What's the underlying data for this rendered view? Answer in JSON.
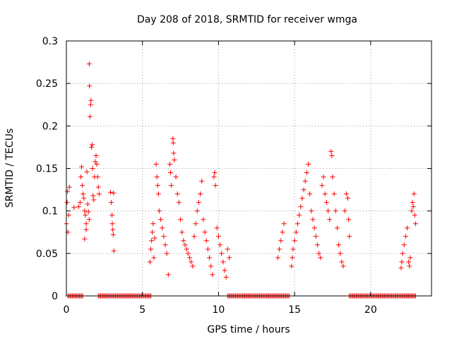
{
  "chart_data": {
    "type": "scatter",
    "title": "Day 208 of 2018, SRMTID for receiver wmga",
    "xlabel": "GPS time / hours",
    "ylabel": "SRMTID / TECUs",
    "xlim": [
      0,
      24
    ],
    "ylim": [
      0,
      0.3
    ],
    "xticks": [
      0,
      5,
      10,
      15,
      20
    ],
    "xtick_labels": [
      "0",
      "5",
      "10",
      "15",
      "20"
    ],
    "yticks": [
      0,
      0.05,
      0.1,
      0.15,
      0.2,
      0.25,
      0.3
    ],
    "ytick_labels": [
      "0",
      "0.05",
      "0.1",
      "0.15",
      "0.2",
      "0.25",
      "0.3"
    ],
    "grid": true,
    "marker": "+",
    "series": [
      {
        "name": "SRMTID",
        "color": "#ff0000",
        "points": [
          [
            0.0,
            0.085
          ],
          [
            0.05,
            0.11
          ],
          [
            0.08,
            0.123
          ],
          [
            0.1,
            0.075
          ],
          [
            0.15,
            0.095
          ],
          [
            0.2,
            0.128
          ],
          [
            0.5,
            0.104
          ],
          [
            0.8,
            0.105
          ],
          [
            0.9,
            0.11
          ],
          [
            0.95,
            0.14
          ],
          [
            1.0,
            0.152
          ],
          [
            1.05,
            0.13
          ],
          [
            1.1,
            0.12
          ],
          [
            1.15,
            0.115
          ],
          [
            1.2,
            0.1
          ],
          [
            1.25,
            0.095
          ],
          [
            1.3,
            0.085
          ],
          [
            1.35,
            0.146
          ],
          [
            1.4,
            0.108
          ],
          [
            1.45,
            0.099
          ],
          [
            1.5,
            0.273
          ],
          [
            1.52,
            0.247
          ],
          [
            1.55,
            0.211
          ],
          [
            1.6,
            0.225
          ],
          [
            1.62,
            0.23
          ],
          [
            1.65,
            0.175
          ],
          [
            1.7,
            0.178
          ],
          [
            1.72,
            0.15
          ],
          [
            1.75,
            0.118
          ],
          [
            1.8,
            0.113
          ],
          [
            1.85,
            0.14
          ],
          [
            1.9,
            0.158
          ],
          [
            1.95,
            0.165
          ],
          [
            2.0,
            0.155
          ],
          [
            2.05,
            0.14
          ],
          [
            2.1,
            0.128
          ],
          [
            2.15,
            0.12
          ],
          [
            1.2,
            0.067
          ],
          [
            1.3,
            0.078
          ],
          [
            1.5,
            0.09
          ],
          [
            2.9,
            0.122
          ],
          [
            2.95,
            0.11
          ],
          [
            3.0,
            0.095
          ],
          [
            3.02,
            0.085
          ],
          [
            3.05,
            0.078
          ],
          [
            3.08,
            0.072
          ],
          [
            3.1,
            0.121
          ],
          [
            3.12,
            0.053
          ],
          [
            5.5,
            0.04
          ],
          [
            5.55,
            0.055
          ],
          [
            5.6,
            0.065
          ],
          [
            5.65,
            0.075
          ],
          [
            5.7,
            0.085
          ],
          [
            5.75,
            0.045
          ],
          [
            5.8,
            0.068
          ],
          [
            5.9,
            0.155
          ],
          [
            5.95,
            0.14
          ],
          [
            6.0,
            0.13
          ],
          [
            6.05,
            0.12
          ],
          [
            6.1,
            0.1
          ],
          [
            6.2,
            0.09
          ],
          [
            6.3,
            0.08
          ],
          [
            6.4,
            0.07
          ],
          [
            6.5,
            0.06
          ],
          [
            6.6,
            0.05
          ],
          [
            6.7,
            0.025
          ],
          [
            6.8,
            0.155
          ],
          [
            6.85,
            0.145
          ],
          [
            6.9,
            0.13
          ],
          [
            7.0,
            0.185
          ],
          [
            7.02,
            0.18
          ],
          [
            7.05,
            0.168
          ],
          [
            7.1,
            0.16
          ],
          [
            7.2,
            0.14
          ],
          [
            7.3,
            0.12
          ],
          [
            7.4,
            0.11
          ],
          [
            7.5,
            0.09
          ],
          [
            7.6,
            0.075
          ],
          [
            7.7,
            0.065
          ],
          [
            7.8,
            0.06
          ],
          [
            7.9,
            0.055
          ],
          [
            8.0,
            0.05
          ],
          [
            8.1,
            0.045
          ],
          [
            8.2,
            0.04
          ],
          [
            8.3,
            0.035
          ],
          [
            8.4,
            0.07
          ],
          [
            8.5,
            0.085
          ],
          [
            8.6,
            0.1
          ],
          [
            8.7,
            0.11
          ],
          [
            8.8,
            0.12
          ],
          [
            8.9,
            0.135
          ],
          [
            9.0,
            0.09
          ],
          [
            9.1,
            0.075
          ],
          [
            9.2,
            0.065
          ],
          [
            9.3,
            0.055
          ],
          [
            9.4,
            0.045
          ],
          [
            9.5,
            0.035
          ],
          [
            9.6,
            0.025
          ],
          [
            9.7,
            0.14
          ],
          [
            9.75,
            0.145
          ],
          [
            9.8,
            0.13
          ],
          [
            9.9,
            0.08
          ],
          [
            10.0,
            0.07
          ],
          [
            10.1,
            0.06
          ],
          [
            10.2,
            0.05
          ],
          [
            10.3,
            0.04
          ],
          [
            10.4,
            0.03
          ],
          [
            10.5,
            0.022
          ],
          [
            10.6,
            0.055
          ],
          [
            10.7,
            0.045
          ],
          [
            13.9,
            0.045
          ],
          [
            14.0,
            0.055
          ],
          [
            14.1,
            0.065
          ],
          [
            14.2,
            0.075
          ],
          [
            14.3,
            0.085
          ],
          [
            14.8,
            0.035
          ],
          [
            14.85,
            0.045
          ],
          [
            14.9,
            0.055
          ],
          [
            15.0,
            0.065
          ],
          [
            15.1,
            0.075
          ],
          [
            15.2,
            0.085
          ],
          [
            15.3,
            0.095
          ],
          [
            15.4,
            0.105
          ],
          [
            15.5,
            0.115
          ],
          [
            15.6,
            0.125
          ],
          [
            15.7,
            0.135
          ],
          [
            15.8,
            0.145
          ],
          [
            15.9,
            0.155
          ],
          [
            16.0,
            0.12
          ],
          [
            16.1,
            0.1
          ],
          [
            16.2,
            0.09
          ],
          [
            16.3,
            0.08
          ],
          [
            16.4,
            0.07
          ],
          [
            16.5,
            0.06
          ],
          [
            16.6,
            0.05
          ],
          [
            16.7,
            0.045
          ],
          [
            16.8,
            0.13
          ],
          [
            16.9,
            0.14
          ],
          [
            17.0,
            0.12
          ],
          [
            17.1,
            0.11
          ],
          [
            17.2,
            0.1
          ],
          [
            17.3,
            0.09
          ],
          [
            17.4,
            0.17
          ],
          [
            17.45,
            0.165
          ],
          [
            17.5,
            0.14
          ],
          [
            17.6,
            0.12
          ],
          [
            17.7,
            0.1
          ],
          [
            17.8,
            0.08
          ],
          [
            17.9,
            0.06
          ],
          [
            18.0,
            0.05
          ],
          [
            18.1,
            0.04
          ],
          [
            18.2,
            0.035
          ],
          [
            18.3,
            0.1
          ],
          [
            18.4,
            0.12
          ],
          [
            18.5,
            0.115
          ],
          [
            18.55,
            0.09
          ],
          [
            18.6,
            0.07
          ],
          [
            22.0,
            0.033
          ],
          [
            22.05,
            0.04
          ],
          [
            22.1,
            0.05
          ],
          [
            22.2,
            0.06
          ],
          [
            22.3,
            0.07
          ],
          [
            22.4,
            0.08
          ],
          [
            22.5,
            0.04
          ],
          [
            22.55,
            0.035
          ],
          [
            22.6,
            0.045
          ],
          [
            22.7,
            0.1
          ],
          [
            22.75,
            0.11
          ],
          [
            22.8,
            0.105
          ],
          [
            22.85,
            0.12
          ],
          [
            22.9,
            0.095
          ],
          [
            22.95,
            0.085
          ]
        ],
        "zero_ranges": [
          [
            0.1,
            1.1
          ],
          [
            2.1,
            5.6
          ],
          [
            10.6,
            14.7
          ],
          [
            18.6,
            23.0
          ]
        ]
      }
    ]
  }
}
